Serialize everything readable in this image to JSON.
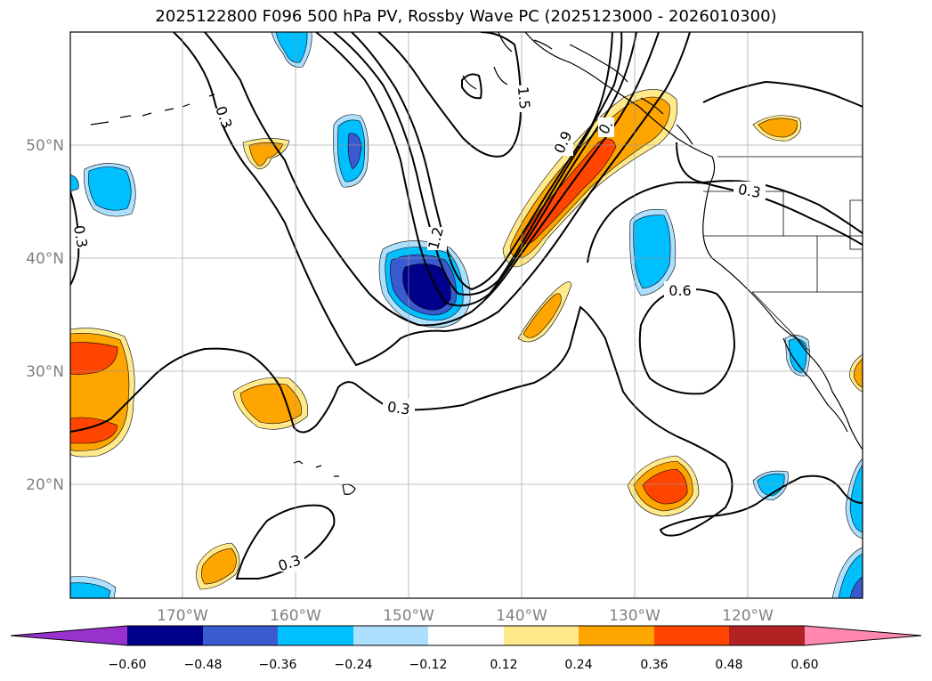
{
  "title": "2025122800 F096 500 hPa PV, Rossby Wave PC (2025123000 - 2026010300)",
  "map": {
    "lat_labels": [
      "50°N",
      "40°N",
      "30°N",
      "20°N"
    ],
    "lon_labels": [
      "170°W",
      "160°W",
      "150°W",
      "140°W",
      "130°W",
      "120°W"
    ],
    "contour_labels": [
      "0.3",
      "0.3",
      "1.5",
      "1.2",
      "0.9",
      "0.",
      "0.3",
      "0.6",
      "0.3",
      "0.3"
    ]
  },
  "colorbar": {
    "tick_labels": [
      "−0.60",
      "−0.48",
      "−0.36",
      "−0.24",
      "−0.12",
      "0.12",
      "0.24",
      "0.36",
      "0.48",
      "0.60"
    ],
    "colors": [
      "#9932CC",
      "#00008B",
      "#3A5BCF",
      "#00BFFF",
      "#ADE0FF",
      "#FFFFFF",
      "#FFE98A",
      "#FFA500",
      "#FF4500",
      "#B22222",
      "#FF88B0"
    ]
  },
  "shading": {
    "colors": {
      "c1": "#FFE98A",
      "c2": "#FFA500",
      "c3": "#FF4500",
      "n1": "#ADE0FF",
      "n2": "#00BFFF",
      "n3": "#3A5BCF",
      "n4": "#00008B"
    }
  }
}
